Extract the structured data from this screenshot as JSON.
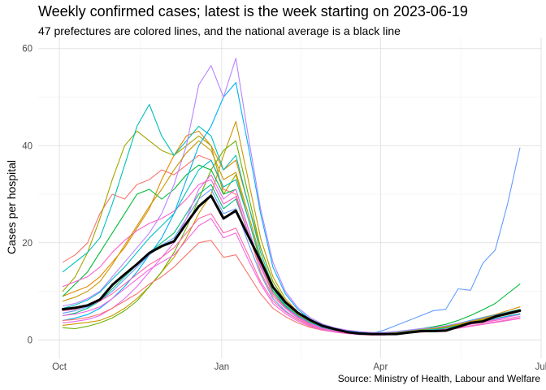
{
  "title": "Weekly confirmed cases; latest is the week starting on 2023-06-19",
  "subtitle": "47 prefectures are colored lines, and the national average is a black line",
  "caption": "Source: Ministry of Health, Labour and Welfare",
  "chart_data": {
    "type": "line",
    "title": "Weekly confirmed cases; latest is the week starting on 2023-06-19",
    "subtitle": "47 prefectures are colored lines, and the national average is a black line",
    "xlabel": "",
    "ylabel": "Cases per hospital",
    "x_tick_labels": [
      "Oct",
      "Jan",
      "Apr",
      "Jul"
    ],
    "x_ticks": [
      "2022-10-01",
      "2023-01-01",
      "2023-04-01",
      "2023-07-01"
    ],
    "y_ticks": [
      0,
      20,
      40,
      60
    ],
    "ylim": [
      0,
      60
    ],
    "xlim": [
      "2022-10-03",
      "2023-06-19"
    ],
    "grid": true,
    "x": [
      "2022-10-03",
      "2022-10-10",
      "2022-10-17",
      "2022-10-24",
      "2022-10-31",
      "2022-11-07",
      "2022-11-14",
      "2022-11-21",
      "2022-11-28",
      "2022-12-05",
      "2022-12-12",
      "2022-12-19",
      "2022-12-26",
      "2023-01-02",
      "2023-01-09",
      "2023-01-16",
      "2023-01-23",
      "2023-01-30",
      "2023-02-06",
      "2023-02-13",
      "2023-02-20",
      "2023-02-27",
      "2023-03-06",
      "2023-03-13",
      "2023-03-20",
      "2023-03-27",
      "2023-04-03",
      "2023-04-10",
      "2023-04-17",
      "2023-04-24",
      "2023-05-01",
      "2023-05-08",
      "2023-05-15",
      "2023-05-22",
      "2023-05-29",
      "2023-06-05",
      "2023-06-12",
      "2023-06-19"
    ],
    "national_average": [
      6.3,
      6.6,
      7.1,
      8.3,
      11.3,
      13.5,
      15.6,
      17.9,
      19.3,
      20.3,
      24.0,
      27.5,
      29.7,
      25.0,
      26.6,
      21.4,
      16.3,
      10.9,
      7.8,
      5.6,
      4.1,
      2.9,
      2.2,
      1.6,
      1.3,
      1.2,
      1.2,
      1.2,
      1.5,
      1.8,
      1.8,
      1.9,
      2.7,
      3.5,
      3.8,
      4.8,
      5.4,
      6.0
    ],
    "series": [
      {
        "color": "#f8766d",
        "values": [
          16.0,
          17.5,
          20.0,
          26.0,
          30.0,
          29.0,
          32.0,
          33.0,
          35.0,
          34.0,
          36.0,
          38.0,
          37.0,
          31.0,
          30.0,
          22.0,
          14.0,
          9.0,
          6.5,
          4.5,
          3.2,
          2.4,
          1.9,
          1.5,
          1.3,
          1.2,
          1.3,
          1.4,
          1.6,
          1.9,
          2.1,
          2.4,
          3.0,
          3.6,
          4.1,
          4.6,
          5.2,
          5.8
        ]
      },
      {
        "color": "#e58700",
        "values": [
          9.0,
          10.0,
          11.0,
          13.0,
          16.0,
          19.0,
          23.0,
          27.0,
          33.0,
          38.0,
          42.0,
          43.0,
          40.0,
          35.0,
          37.0,
          28.0,
          19.0,
          12.0,
          8.0,
          5.5,
          3.8,
          2.8,
          2.1,
          1.7,
          1.4,
          1.3,
          1.3,
          1.5,
          1.8,
          2.1,
          2.3,
          2.7,
          3.3,
          4.0,
          4.6,
          5.2,
          6.0,
          6.8
        ]
      },
      {
        "color": "#c99800",
        "values": [
          3.0,
          3.3,
          3.6,
          4.0,
          5.0,
          6.5,
          8.5,
          11.0,
          14.0,
          17.0,
          21.0,
          26.0,
          30.0,
          38.0,
          45.0,
          33.0,
          21.0,
          13.0,
          8.5,
          5.8,
          4.0,
          3.0,
          2.3,
          1.8,
          1.5,
          1.4,
          1.4,
          1.6,
          1.8,
          2.0,
          2.2,
          2.6,
          3.1,
          3.7,
          4.2,
          4.8,
          5.3,
          5.9
        ]
      },
      {
        "color": "#a3a500",
        "values": [
          10.0,
          13.0,
          18.0,
          25.0,
          33.0,
          40.0,
          43.0,
          41.0,
          39.0,
          38.0,
          40.0,
          42.0,
          40.0,
          30.0,
          34.0,
          25.0,
          16.0,
          10.0,
          7.0,
          5.0,
          3.5,
          2.6,
          2.0,
          1.6,
          1.3,
          1.2,
          1.3,
          1.5,
          1.7,
          2.0,
          2.2,
          2.5,
          3.0,
          3.6,
          4.2,
          4.8,
          5.4,
          6.2
        ]
      },
      {
        "color": "#6bb100",
        "values": [
          2.5,
          2.3,
          2.8,
          3.5,
          4.5,
          6.0,
          8.0,
          11.0,
          14.0,
          18.0,
          23.0,
          29.0,
          35.0,
          39.0,
          41.0,
          30.0,
          19.0,
          12.0,
          8.0,
          5.5,
          3.8,
          2.8,
          2.1,
          1.7,
          1.4,
          1.3,
          1.3,
          1.5,
          1.7,
          2.0,
          2.2,
          2.6,
          3.1,
          3.8,
          4.4,
          5.0,
          5.6,
          6.2
        ]
      },
      {
        "color": "#00ba38",
        "values": [
          9.0,
          11.5,
          14.0,
          18.0,
          22.0,
          26.0,
          30.0,
          31.0,
          29.0,
          31.0,
          34.0,
          36.0,
          35.0,
          30.0,
          31.0,
          23.0,
          15.0,
          10.0,
          7.0,
          5.0,
          3.6,
          2.7,
          2.1,
          1.7,
          1.4,
          1.3,
          1.4,
          1.6,
          1.9,
          2.3,
          2.7,
          3.2,
          4.0,
          5.0,
          6.2,
          7.5,
          9.5,
          11.5
        ]
      },
      {
        "color": "#00bf7d",
        "values": [
          5.0,
          5.5,
          6.5,
          8.0,
          10.5,
          13.0,
          15.5,
          18.0,
          20.0,
          22.0,
          26.0,
          30.0,
          32.0,
          27.0,
          29.0,
          22.0,
          15.0,
          9.5,
          6.8,
          4.9,
          3.5,
          2.6,
          2.0,
          1.6,
          1.3,
          1.2,
          1.3,
          1.4,
          1.6,
          1.9,
          2.0,
          2.3,
          2.8,
          3.3,
          3.8,
          4.3,
          4.8,
          5.3
        ]
      },
      {
        "color": "#00c0b8",
        "values": [
          14.0,
          16.0,
          18.0,
          21.0,
          28.0,
          36.0,
          44.0,
          48.5,
          42.0,
          38.0,
          41.0,
          44.0,
          42.0,
          35.0,
          38.0,
          28.0,
          18.0,
          11.0,
          7.5,
          5.3,
          3.8,
          2.8,
          2.2,
          1.7,
          1.4,
          1.3,
          1.4,
          1.6,
          1.9,
          2.2,
          2.4,
          2.8,
          3.3,
          3.9,
          4.5,
          5.1,
          5.7,
          6.3
        ]
      },
      {
        "color": "#00b0f6",
        "values": [
          4.0,
          4.5,
          5.2,
          6.5,
          8.5,
          11.0,
          14.0,
          17.5,
          21.0,
          26.0,
          33.0,
          40.0,
          44.0,
          50.0,
          53.0,
          40.0,
          26.0,
          15.0,
          9.5,
          6.3,
          4.3,
          3.1,
          2.4,
          1.9,
          1.6,
          1.5,
          1.5,
          1.7,
          2.0,
          2.3,
          2.5,
          2.9,
          3.4,
          4.0,
          4.6,
          5.1,
          5.7,
          6.2
        ]
      },
      {
        "color": "#619cff",
        "values": [
          5.5,
          6.0,
          6.8,
          8.0,
          10.0,
          12.5,
          15.0,
          17.5,
          19.5,
          21.0,
          25.0,
          29.0,
          31.0,
          26.0,
          27.0,
          20.0,
          13.5,
          8.5,
          6.0,
          4.2,
          3.0,
          2.2,
          1.7,
          1.4,
          1.2,
          1.3,
          2.0,
          3.0,
          4.0,
          5.0,
          6.0,
          6.3,
          10.5,
          10.2,
          15.8,
          18.5,
          28.0,
          39.5
        ]
      },
      {
        "color": "#b983ff",
        "values": [
          7.0,
          7.5,
          8.5,
          10.0,
          13.0,
          16.0,
          19.0,
          22.0,
          26.0,
          32.0,
          40.0,
          52.5,
          56.5,
          50.0,
          58.0,
          42.0,
          27.0,
          16.0,
          10.0,
          6.7,
          4.6,
          3.3,
          2.5,
          2.0,
          1.7,
          1.5,
          1.5,
          1.7,
          2.0,
          2.3,
          2.5,
          2.9,
          3.4,
          3.9,
          4.5,
          5.0,
          5.5,
          6.0
        ]
      },
      {
        "color": "#e76bf3",
        "values": [
          3.5,
          3.8,
          4.2,
          5.0,
          6.5,
          8.5,
          11.0,
          14.0,
          17.0,
          20.0,
          25.0,
          31.0,
          34.0,
          29.0,
          31.0,
          23.0,
          15.5,
          9.5,
          6.5,
          4.6,
          3.3,
          2.4,
          1.9,
          1.5,
          1.3,
          1.2,
          1.2,
          1.4,
          1.6,
          1.8,
          2.0,
          2.3,
          2.7,
          3.2,
          3.7,
          4.2,
          4.7,
          5.2
        ]
      },
      {
        "color": "#fd61d1",
        "values": [
          11.0,
          12.0,
          13.0,
          15.0,
          18.0,
          20.5,
          22.5,
          24.0,
          25.0,
          26.5,
          29.0,
          32.0,
          33.0,
          28.0,
          29.5,
          22.0,
          15.0,
          9.5,
          6.7,
          4.8,
          3.4,
          2.5,
          1.9,
          1.5,
          1.3,
          1.2,
          1.2,
          1.4,
          1.6,
          1.8,
          2.0,
          2.3,
          2.7,
          3.2,
          3.6,
          4.0,
          4.4,
          4.8
        ]
      },
      {
        "color": "#ff67a4",
        "values": [
          6.0,
          6.3,
          7.0,
          8.0,
          9.5,
          11.5,
          13.5,
          15.5,
          17.0,
          19.0,
          22.0,
          25.0,
          26.0,
          22.0,
          23.0,
          17.5,
          12.0,
          8.0,
          5.8,
          4.2,
          3.0,
          2.2,
          1.7,
          1.4,
          1.2,
          1.1,
          1.1,
          1.3,
          1.5,
          1.7,
          1.8,
          2.1,
          2.5,
          2.9,
          3.3,
          3.7,
          4.1,
          4.5
        ]
      },
      {
        "color": "#f8766d",
        "values": [
          4.0,
          4.2,
          4.6,
          5.3,
          6.5,
          8.0,
          9.5,
          11.5,
          13.0,
          15.0,
          17.5,
          20.0,
          20.5,
          17.0,
          17.5,
          13.5,
          9.5,
          6.5,
          4.8,
          3.5,
          2.6,
          2.0,
          1.6,
          1.3,
          1.1,
          1.0,
          1.0,
          1.2,
          1.4,
          1.6,
          1.7,
          2.0,
          2.4,
          2.8,
          3.2,
          3.6,
          4.0,
          4.4
        ]
      },
      {
        "color": "#c99800",
        "values": [
          8.0,
          8.8,
          10.0,
          12.0,
          15.5,
          19.5,
          23.5,
          27.5,
          31.0,
          35.0,
          38.5,
          41.0,
          39.0,
          33.0,
          34.5,
          26.0,
          17.0,
          11.0,
          7.5,
          5.2,
          3.7,
          2.7,
          2.1,
          1.7,
          1.4,
          1.3,
          1.3,
          1.5,
          1.8,
          2.1,
          2.3,
          2.7,
          3.2,
          3.8,
          4.4,
          5.0,
          5.6,
          6.2
        ]
      },
      {
        "color": "#00bfc4",
        "values": [
          6.5,
          7.2,
          8.2,
          9.8,
          12.5,
          15.0,
          18.0,
          21.0,
          23.5,
          26.0,
          30.5,
          35.0,
          37.0,
          31.5,
          33.0,
          25.0,
          16.5,
          10.5,
          7.2,
          5.0,
          3.6,
          2.6,
          2.0,
          1.6,
          1.3,
          1.2,
          1.2,
          1.4,
          1.7,
          2.0,
          2.1,
          2.4,
          2.9,
          3.4,
          3.9,
          4.4,
          4.9,
          5.4
        ]
      },
      {
        "color": "#f564e3",
        "values": [
          5.0,
          5.3,
          5.9,
          6.8,
          8.5,
          10.5,
          12.5,
          14.5,
          16.0,
          17.5,
          20.5,
          23.5,
          25.0,
          21.0,
          22.0,
          16.5,
          11.5,
          7.5,
          5.4,
          3.9,
          2.8,
          2.1,
          1.6,
          1.3,
          1.1,
          1.0,
          1.0,
          1.2,
          1.4,
          1.6,
          1.7,
          2.0,
          2.4,
          2.8,
          3.2,
          3.6,
          4.0,
          4.4
        ]
      }
    ]
  }
}
